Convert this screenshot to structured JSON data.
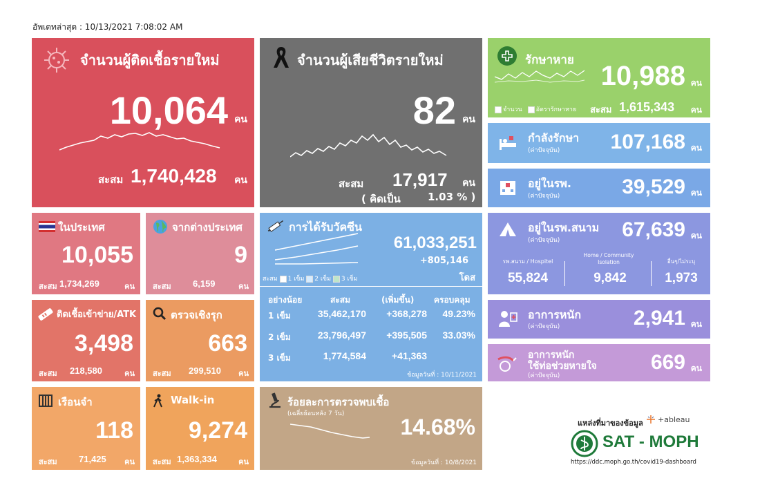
{
  "updated": "อัพเดทล่าสุด : 10/13/2021 7:08:02 AM",
  "unit": "คน",
  "cumulative_label": "สะสม",
  "new_cases": {
    "title": "จำนวนผู้ติดเชื้อรายใหม่",
    "value": "10,064",
    "cumulative": "1,740,428",
    "color": "#d9505c"
  },
  "deaths": {
    "title": "จำนวนผู้เสียชีวิตรายใหม่",
    "value": "82",
    "cumulative": "17,917",
    "percent_label": "( คิดเป็น",
    "percent": "1.03 % )",
    "color": "#707070"
  },
  "recovered": {
    "title": "รักษาหาย",
    "value": "10,988",
    "cumulative": "1,615,343",
    "legend": [
      "จำนวน",
      "อัตรารักษาหาย"
    ],
    "color": "#9ad16b"
  },
  "treating": {
    "title": "กำลังรักษา",
    "subtitle": "(ค่าปัจจุบัน)",
    "value": "107,168",
    "color": "#7fb4e8"
  },
  "in_hospital": {
    "title": "อยู่ในรพ.",
    "subtitle": "(ค่าปัจจุบัน)",
    "value": "39,529",
    "color": "#7aa8e6"
  },
  "field_hospital": {
    "title": "อยู่ในรพ.สนาม",
    "subtitle": "(ค่าปัจจุบัน)",
    "value": "67,639",
    "cols": [
      {
        "label": "รพ.สนาม / Hospitel",
        "value": "55,824"
      },
      {
        "label": "Home / Community Isolation",
        "value": "9,842"
      },
      {
        "label": "อื่นๆ/ไม่ระบุ",
        "value": "1,973"
      }
    ],
    "color": "#8c97e0"
  },
  "severe": {
    "title": "อาการหนัก",
    "subtitle": "(ค่าปัจจุบัน)",
    "value": "2,941",
    "color": "#9a8fdc"
  },
  "ventilator": {
    "title_line1": "อาการหนัก",
    "title_line2": "ใช้ท่อช่วยหายใจ",
    "subtitle": "(ค่าปัจจุบัน)",
    "value": "669",
    "color": "#c49ad8"
  },
  "domestic": {
    "title": "ในประเทศ",
    "value": "10,055",
    "cumulative": "1,734,269",
    "color": "#e07882"
  },
  "abroad": {
    "title": "จากต่างประเทศ",
    "value": "9",
    "cumulative": "6,159",
    "color": "#de8d9a"
  },
  "atk": {
    "title": "ติดเชื้อเข้าข่าย/ATK",
    "value": "3,498",
    "cumulative": "218,580",
    "color": "#e27468"
  },
  "active_search": {
    "title": "ตรวจเชิงรุก",
    "value": "663",
    "cumulative": "299,510",
    "color": "#eb9b61"
  },
  "prison": {
    "title": "เรือนจำ",
    "value": "118",
    "cumulative": "71,425",
    "color": "#f2a768"
  },
  "walkin": {
    "title": "Walk-in",
    "value": "9,274",
    "cumulative": "1,363,334",
    "color": "#f0a45c"
  },
  "vaccine": {
    "title": "การได้รับวัคซีน",
    "total": "61,033,251",
    "daily": "+805,146",
    "unit": "โดส",
    "legend_prefix": "สะสม",
    "legend": [
      "1 เข็ม",
      "2 เข็ม",
      "3 เข็ม"
    ],
    "headers": [
      "อย่างน้อย",
      "สะสม",
      "(เพิ่มขึ้น)",
      "ครอบคลุม"
    ],
    "rows": [
      {
        "dose": "1 เข็ม",
        "cum": "35,462,170",
        "inc": "+368,278",
        "cov": "49.23%"
      },
      {
        "dose": "2 เข็ม",
        "cum": "23,796,497",
        "inc": "+395,505",
        "cov": "33.03%"
      },
      {
        "dose": "3 เข็ม",
        "cum": "1,774,584",
        "inc": "+41,363",
        "cov": ""
      }
    ],
    "date": "ข้อมูลวันที่ : 10/11/2021",
    "color": "#7cb0e4"
  },
  "positivity": {
    "title": "ร้อยละการตรวจพบเชื้อ",
    "subtitle": "(เฉลี่ยย้อนหลัง 7 วัน)",
    "value": "14.68%",
    "date": "ข้อมูลวันที่ : 10/8/2021",
    "color": "#c2a687"
  },
  "source": {
    "label": "แหล่งที่มาของข้อมูล",
    "tableau": "+ableau",
    "brand": "SAT - MOPH",
    "url": "https://ddc.moph.go.th/covid19-dashboard"
  }
}
